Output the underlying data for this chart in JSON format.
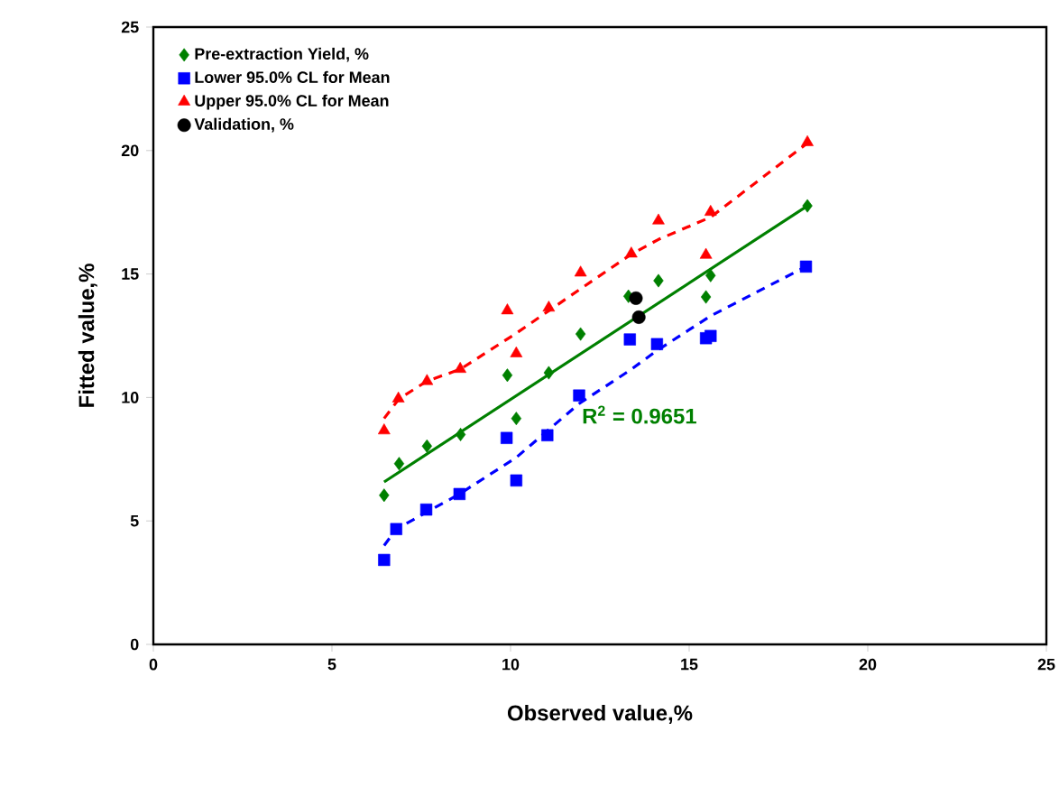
{
  "chart_data": {
    "type": "scatter",
    "xlabel": "Observed value,%",
    "ylabel": "Fitted value,%",
    "xlim": [
      0,
      25
    ],
    "ylim": [
      0,
      25
    ],
    "xticks": [
      0,
      5,
      10,
      15,
      20,
      25
    ],
    "yticks": [
      0,
      5,
      10,
      15,
      20,
      25
    ],
    "grid": false,
    "legend": "top left",
    "series": [
      {
        "name": "Pre-extraction Yield, %",
        "marker": "diamond",
        "color": "#008000",
        "x": [
          6.46,
          6.88,
          7.66,
          8.6,
          9.91,
          10.16,
          11.07,
          11.96,
          13.3,
          14.14,
          15.47,
          15.6,
          18.31
        ],
        "values": [
          6.04,
          7.32,
          8.03,
          8.5,
          10.9,
          9.15,
          11.0,
          12.57,
          14.1,
          14.73,
          14.07,
          14.94,
          17.76
        ]
      },
      {
        "name": "Lower 95.0% CL for Mean",
        "marker": "square",
        "color": "#0000ff",
        "x": [
          6.46,
          6.8,
          7.64,
          8.57,
          9.89,
          10.16,
          11.03,
          11.92,
          13.34,
          14.1,
          15.47,
          15.6,
          18.27
        ],
        "values": [
          3.42,
          4.67,
          5.46,
          6.09,
          8.36,
          6.64,
          8.47,
          10.08,
          12.35,
          12.16,
          12.4,
          12.49,
          15.3
        ]
      },
      {
        "name": "Upper 95.0% CL for Mean",
        "marker": "triangle",
        "color": "#ff0000",
        "x": [
          6.46,
          6.86,
          7.66,
          8.59,
          9.91,
          10.16,
          11.07,
          11.96,
          13.38,
          14.14,
          15.47,
          15.6,
          18.31
        ],
        "values": [
          8.66,
          9.95,
          10.66,
          11.15,
          13.52,
          11.78,
          13.63,
          15.05,
          15.82,
          17.16,
          15.77,
          17.51,
          20.33
        ]
      },
      {
        "name": "Validation, %",
        "marker": "circle",
        "color": "#000000",
        "x": [
          13.51,
          13.59
        ],
        "values": [
          14.02,
          13.25
        ]
      },
      {
        "type": "line",
        "marker": "none",
        "line_style": "solid",
        "color": "#008000",
        "x": [
          6.46,
          18.31
        ],
        "values": [
          6.58,
          17.76
        ]
      },
      {
        "type": "line",
        "marker": "none",
        "line_style": "dashed",
        "color": "#0000ff",
        "x": [
          6.46,
          6.8,
          8.57,
          10.16,
          11.92,
          13.34,
          14.1,
          15.6,
          18.27
        ],
        "values": [
          4.0,
          4.67,
          6.09,
          7.57,
          9.75,
          11.1,
          11.9,
          13.3,
          15.3
        ]
      },
      {
        "type": "line",
        "marker": "none",
        "line_style": "dashed",
        "color": "#ff0000",
        "x": [
          6.46,
          6.88,
          7.66,
          8.6,
          10.16,
          11.96,
          13.38,
          14.14,
          15.6,
          18.31
        ],
        "values": [
          9.15,
          9.95,
          10.66,
          11.15,
          12.6,
          14.4,
          15.8,
          16.4,
          17.3,
          20.3
        ]
      }
    ],
    "annotations": [
      {
        "text": "R$^{2}$ = 0.9651",
        "x": 11.8,
        "y": 9.3
      }
    ]
  }
}
